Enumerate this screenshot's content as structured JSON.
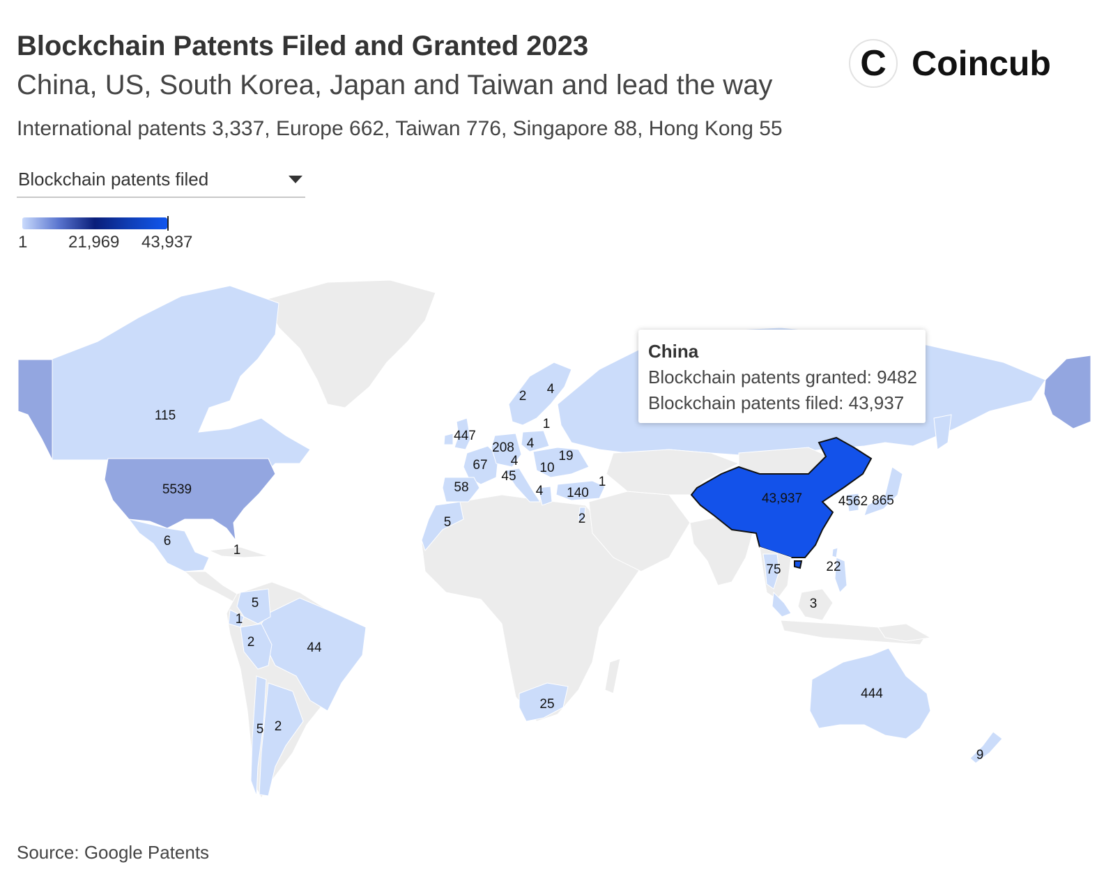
{
  "title": "Blockchain Patents Filed and Granted 2023",
  "subtitle": "China, US, South Korea, Japan and Taiwan and lead the way",
  "description": "International patents 3,337, Europe 662, Taiwan 776, Singapore 88, Hong Kong 55",
  "logo": {
    "mark": "C",
    "word": "Coincub"
  },
  "dropdown": {
    "selected": "Blockchain patents filed"
  },
  "legend": {
    "min_label": "1",
    "mid_label": "21,969",
    "max_label": "43,937",
    "min": 1,
    "max": 43937
  },
  "tooltip": {
    "country": "China",
    "granted_label": "Blockchain patents granted",
    "granted_value": "9482",
    "filed_label": "Blockchain patents filed",
    "filed_value": "43,937"
  },
  "source": "Source: Google Patents",
  "colors": {
    "low": "#cbdcfa",
    "mid_low": "#a5b5ec",
    "mid": "#93a6e0",
    "high": "#1352ea",
    "no_data": "#ececec",
    "label": "#111111"
  },
  "chart_data": {
    "type": "choropleth",
    "metric": "Blockchain patents filed",
    "values": [
      {
        "label": "115"
      },
      {
        "label": "5539"
      },
      {
        "label": "6"
      },
      {
        "label": "1"
      },
      {
        "label": "5"
      },
      {
        "label": "1"
      },
      {
        "label": "2"
      },
      {
        "label": "44"
      },
      {
        "label": "5"
      },
      {
        "label": "2"
      },
      {
        "label": "447"
      },
      {
        "label": "2"
      },
      {
        "label": "4"
      },
      {
        "label": "1"
      },
      {
        "label": "208"
      },
      {
        "label": "4"
      },
      {
        "label": "4"
      },
      {
        "label": "67"
      },
      {
        "label": "45"
      },
      {
        "label": "19"
      },
      {
        "label": "10"
      },
      {
        "label": "58"
      },
      {
        "label": "4"
      },
      {
        "label": "140"
      },
      {
        "label": "1"
      },
      {
        "label": "5"
      },
      {
        "label": "2"
      },
      {
        "label": "43,937"
      },
      {
        "label": "4562"
      },
      {
        "label": "865"
      },
      {
        "label": "75"
      },
      {
        "label": "22"
      },
      {
        "label": "3"
      },
      {
        "label": "25"
      },
      {
        "label": "444"
      },
      {
        "label": "9"
      }
    ]
  }
}
